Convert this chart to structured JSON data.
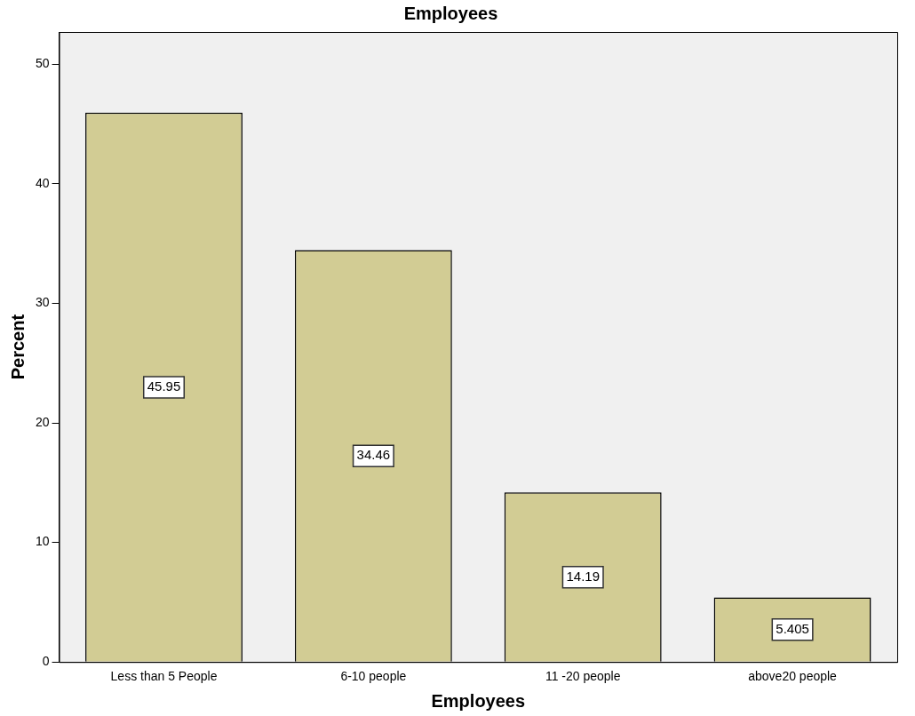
{
  "chart_data": {
    "type": "bar",
    "title": "Employees",
    "xlabel": "Employees",
    "ylabel": "Percent",
    "categories": [
      "Less than 5 People",
      "6-10 people",
      "11 -20 people",
      "above20 people"
    ],
    "values": [
      45.95,
      34.46,
      14.19,
      5.405
    ],
    "color": "#d2cc94",
    "ylim": [
      0,
      52.7
    ],
    "yticks": [
      0,
      10,
      20,
      30,
      40,
      50
    ],
    "grid": false,
    "legend": false,
    "data_labels": true
  }
}
